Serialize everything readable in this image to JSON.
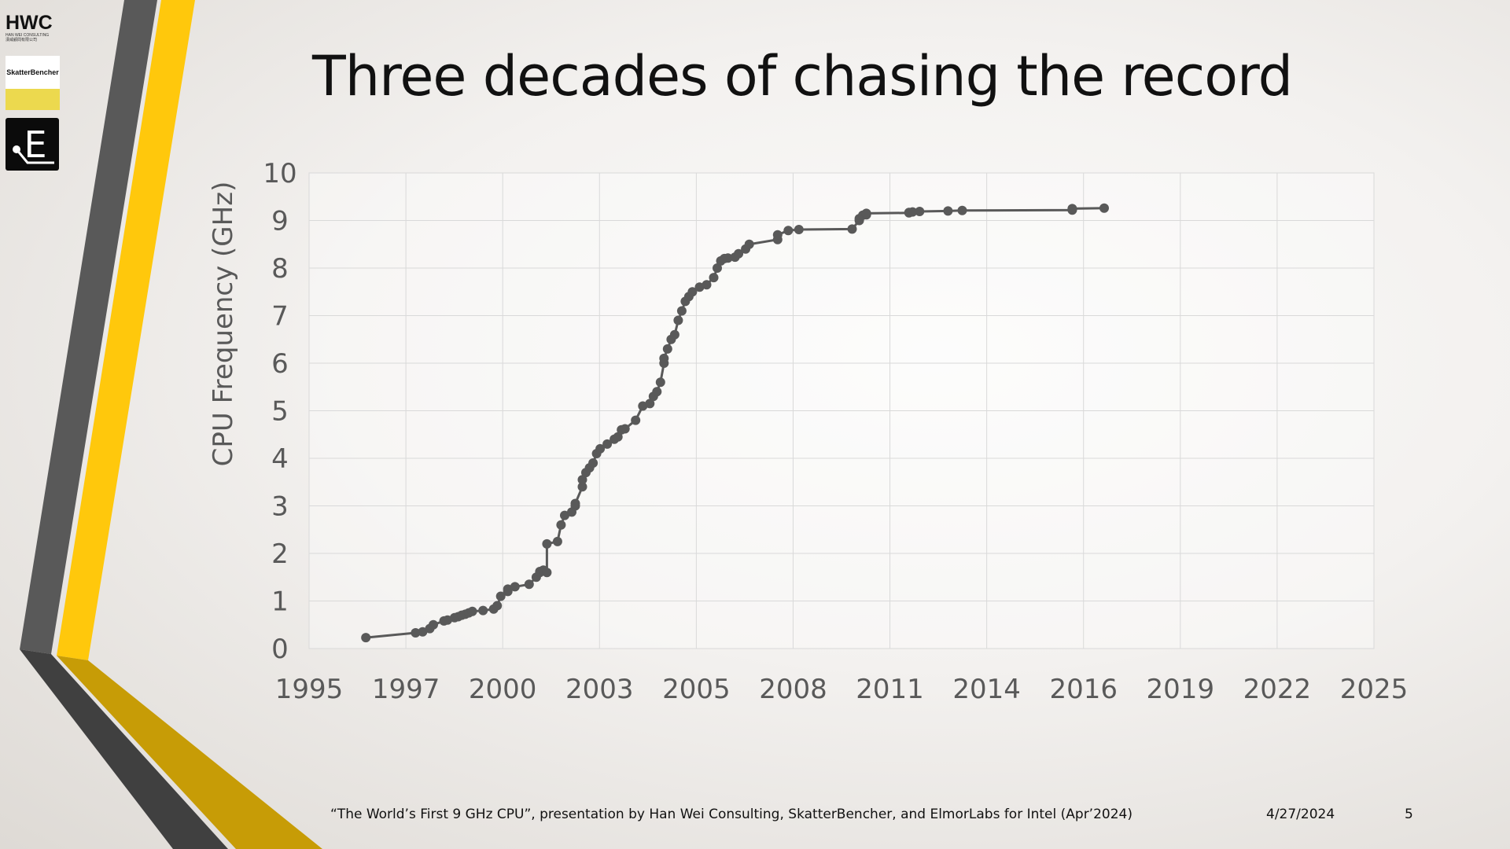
{
  "slide": {
    "title": "Three decades of chasing the record",
    "citation": "“The World’s First 9 GHz CPU”, presentation by Han Wei Consulting, SkatterBencher, and ElmorLabs for Intel (Apr’2024)",
    "date": "4/27/2024",
    "page_number": "5"
  },
  "logos": {
    "hwc": {
      "text": "HWC",
      "subtext": "HAN WEI CONSULTING",
      "subtext_cn": "漢威顧問有限公司"
    },
    "skatterbencher": {
      "text": "SkatterBencher"
    },
    "elmorlabs": {
      "text": "E"
    }
  },
  "colors": {
    "accent_yellow": "#ffc80c",
    "accent_gold": "#c79c06",
    "dark_gray": "#595959",
    "series": "#595959"
  },
  "chart_data": {
    "type": "scatter",
    "title": "",
    "xlabel": "",
    "ylabel": "CPU Frequency (GHz)",
    "xlim": [
      1995,
      2025
    ],
    "ylim": [
      0,
      10
    ],
    "x_tick_labels": [
      "1995",
      "1997",
      "2000",
      "2003",
      "2005",
      "2008",
      "2011",
      "2014",
      "2016",
      "2019",
      "2022",
      "2025"
    ],
    "y_tick_labels": [
      "0",
      "1",
      "2",
      "3",
      "4",
      "5",
      "6",
      "7",
      "8",
      "9",
      "10"
    ],
    "grid": true,
    "legend": "none",
    "series": [
      {
        "x": [
          1996.6,
          1998.0,
          1998.2,
          1998.4,
          1998.5,
          1998.8,
          1998.9,
          1999.1,
          1999.2,
          1999.3,
          1999.4,
          1999.5,
          1999.6,
          1999.9,
          2000.2,
          2000.3,
          2000.4,
          2000.6,
          2000.6,
          2000.8,
          2001.2,
          2001.4,
          2001.5,
          2001.5,
          2001.6,
          2001.7,
          2001.7,
          2002.0,
          2002.1,
          2002.2,
          2002.4,
          2002.5,
          2002.5,
          2002.7,
          2002.7,
          2002.8,
          2002.9,
          2003.0,
          2003.1,
          2003.2,
          2003.4,
          2003.6,
          2003.7,
          2003.8,
          2003.9,
          2004.2,
          2004.4,
          2004.6,
          2004.7,
          2004.8,
          2004.9,
          2005.0,
          2005.0,
          2005.1,
          2005.2,
          2005.3,
          2005.4,
          2005.5,
          2005.6,
          2005.7,
          2005.8,
          2006.0,
          2006.2,
          2006.4,
          2006.5,
          2006.6,
          2006.7,
          2006.8,
          2007.0,
          2007.1,
          2007.3,
          2007.4,
          2008.2,
          2008.2,
          2008.5,
          2008.8,
          2010.3,
          2010.5,
          2010.5,
          2010.6,
          2010.7,
          2010.7,
          2010.7,
          2010.7,
          2011.9,
          2011.9,
          2012.0,
          2012.2,
          2013.0,
          2013.4,
          2016.5,
          2016.5,
          2016.5,
          2016.5,
          2017.4
        ],
        "y": [
          0.23,
          0.33,
          0.35,
          0.42,
          0.5,
          0.58,
          0.6,
          0.65,
          0.67,
          0.7,
          0.72,
          0.75,
          0.78,
          0.8,
          0.83,
          0.9,
          1.1,
          1.2,
          1.25,
          1.3,
          1.35,
          1.5,
          1.6,
          1.62,
          1.65,
          1.6,
          2.2,
          2.25,
          2.6,
          2.8,
          2.87,
          3.0,
          3.05,
          3.4,
          3.55,
          3.7,
          3.8,
          3.9,
          4.1,
          4.2,
          4.3,
          4.4,
          4.45,
          4.6,
          4.62,
          4.8,
          5.1,
          5.15,
          5.3,
          5.4,
          5.6,
          6.0,
          6.1,
          6.3,
          6.5,
          6.6,
          6.9,
          7.1,
          7.3,
          7.4,
          7.5,
          7.6,
          7.65,
          7.8,
          8.0,
          8.15,
          8.2,
          8.21,
          8.23,
          8.3,
          8.4,
          8.5,
          8.6,
          8.7,
          8.79,
          8.81,
          8.82,
          9.0,
          9.04,
          9.11,
          9.12,
          9.13,
          9.14,
          9.15,
          9.16,
          9.17,
          9.18,
          9.19,
          9.2,
          9.21,
          9.22,
          9.23,
          9.24,
          9.25,
          9.26
        ]
      }
    ]
  }
}
